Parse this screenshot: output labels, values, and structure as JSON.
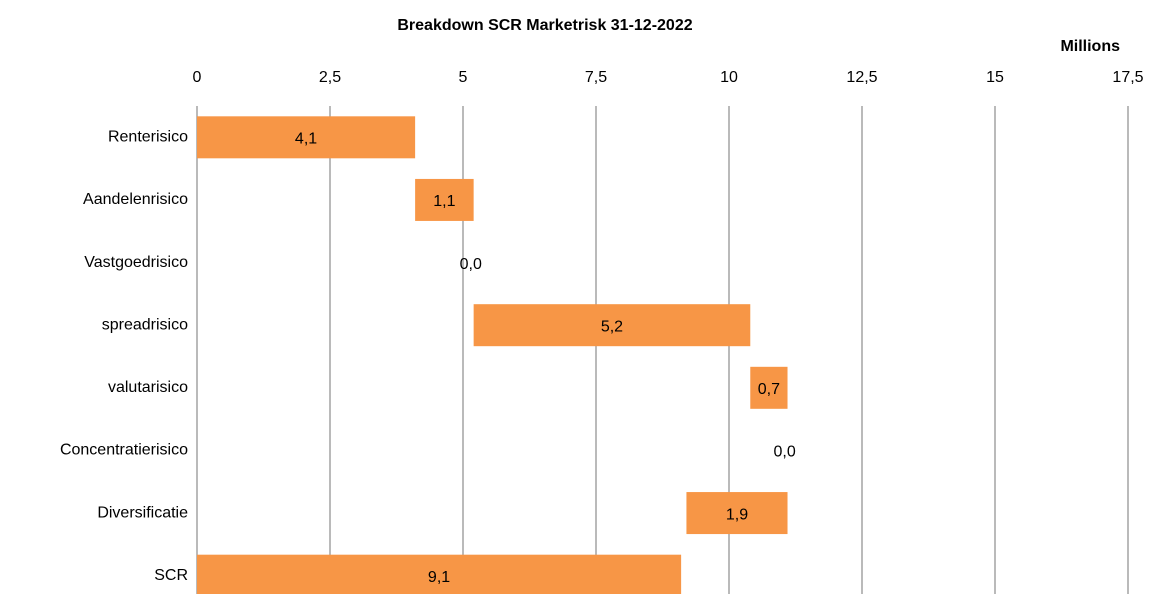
{
  "chart_data": {
    "type": "waterfall",
    "title": "Breakdown SCR Marketrisk 31-12-2022",
    "x_unit_label": "Millions",
    "categories": [
      "Renterisico",
      "Aandelenrisico",
      "Vastgoedrisico",
      "spreadrisico",
      "valutarisico",
      "Concentratierisico",
      "Diversificatie",
      "SCR"
    ],
    "values": [
      4.1,
      1.1,
      0.0,
      5.2,
      0.7,
      0.0,
      -1.9,
      9.1
    ],
    "value_labels": [
      "4,1",
      "1,1",
      "0,0",
      "5,2",
      "0,7",
      "0,0",
      "1,9",
      "9,1"
    ],
    "total": [
      false,
      false,
      false,
      false,
      false,
      false,
      false,
      true
    ],
    "color": "#f79646",
    "xlim": [
      0,
      17.5
    ],
    "xticks": [
      0,
      {
        "value": 2.5,
        "label": "2,5"
      },
      5,
      {
        "value": 7.5,
        "label": "7,5"
      },
      10,
      {
        "value": 12.5,
        "label": "12,5"
      },
      15,
      {
        "value": 17.5,
        "label": "17,5"
      }
    ],
    "grid": true
  }
}
